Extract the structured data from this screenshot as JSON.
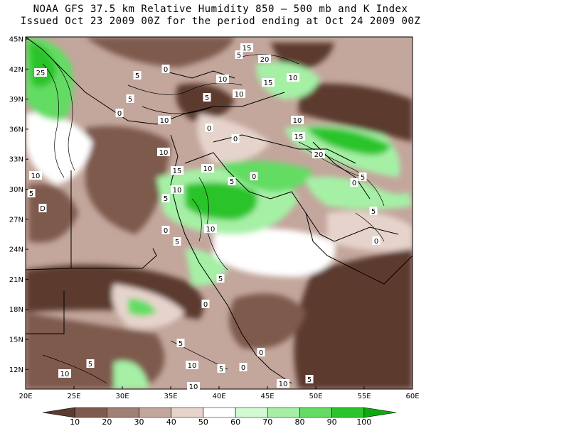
{
  "title": {
    "line1": "NOAA GFS 37.5 km Relative Humidity 850 — 500 mb and K Index",
    "line2": "Issued Oct 23 2009 00Z for the period ending at Oct 24 2009 00Z"
  },
  "axes": {
    "lat_labels": [
      "45N",
      "42N",
      "39N",
      "36N",
      "33N",
      "30N",
      "27N",
      "24N",
      "21N",
      "18N",
      "15N",
      "12N"
    ],
    "lon_labels": [
      "20E",
      "25E",
      "30E",
      "35E",
      "40E",
      "45E",
      "50E",
      "55E",
      "60E"
    ]
  },
  "colorbar": {
    "labels": [
      "10",
      "20",
      "30",
      "40",
      "50",
      "60",
      "70",
      "80",
      "90",
      "100"
    ],
    "colors": [
      "#5c3a2f",
      "#7e5a4e",
      "#a07f74",
      "#c3a69c",
      "#e6d4cc",
      "#ffffff",
      "#d2fad2",
      "#a6f0a6",
      "#64dc64",
      "#2cc42c",
      "#10a810"
    ]
  },
  "contour_labels": [
    {
      "text": "15"
    },
    {
      "text": "5"
    },
    {
      "text": "20"
    },
    {
      "text": "10"
    },
    {
      "text": "15"
    },
    {
      "text": "10"
    },
    {
      "text": "25"
    },
    {
      "text": "5"
    },
    {
      "text": "0"
    },
    {
      "text": "10"
    },
    {
      "text": "5"
    },
    {
      "text": "10"
    },
    {
      "text": "5"
    },
    {
      "text": "0"
    },
    {
      "text": "10"
    },
    {
      "text": "0"
    },
    {
      "text": "10"
    },
    {
      "text": "0"
    },
    {
      "text": "15"
    },
    {
      "text": "5"
    },
    {
      "text": "15"
    },
    {
      "text": "10"
    },
    {
      "text": "20"
    },
    {
      "text": "10"
    },
    {
      "text": "0"
    },
    {
      "text": "5"
    },
    {
      "text": "5"
    },
    {
      "text": "10"
    },
    {
      "text": "5"
    },
    {
      "text": "0"
    },
    {
      "text": "D"
    },
    {
      "text": "5"
    },
    {
      "text": "10"
    },
    {
      "text": "5"
    },
    {
      "text": "0"
    },
    {
      "text": "5"
    },
    {
      "text": "0"
    },
    {
      "text": "5"
    },
    {
      "text": "10"
    },
    {
      "text": "10"
    },
    {
      "text": "5"
    },
    {
      "text": "10"
    },
    {
      "text": "5"
    },
    {
      "text": "0"
    },
    {
      "text": "10"
    },
    {
      "text": "0"
    },
    {
      "text": "5"
    },
    {
      "text": "0"
    }
  ]
}
